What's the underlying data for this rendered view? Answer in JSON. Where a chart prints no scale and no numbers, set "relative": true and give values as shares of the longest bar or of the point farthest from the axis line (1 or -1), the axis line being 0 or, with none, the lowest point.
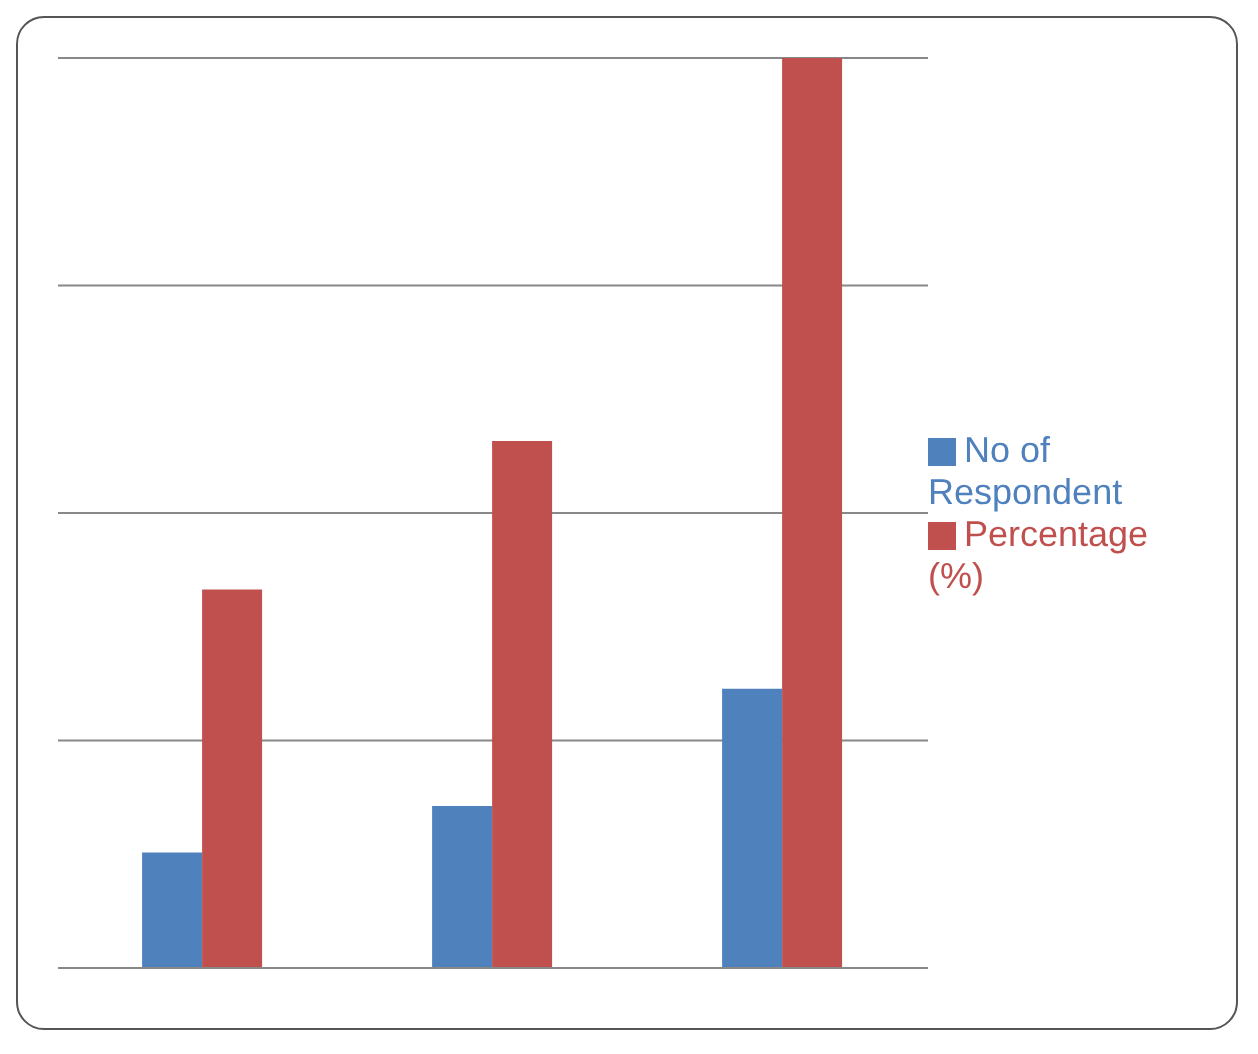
{
  "chart_data": {
    "type": "bar",
    "relative": true,
    "categories": [
      null,
      null,
      null
    ],
    "series": [
      {
        "name": "No of Respondent",
        "color": "#4f81bd",
        "values": [
          0.127,
          0.178,
          0.307
        ]
      },
      {
        "name": "Percentage (%)",
        "color": "#c0504d",
        "values": [
          0.416,
          0.579,
          1
        ]
      }
    ],
    "grid": "y",
    "legend": "right"
  }
}
